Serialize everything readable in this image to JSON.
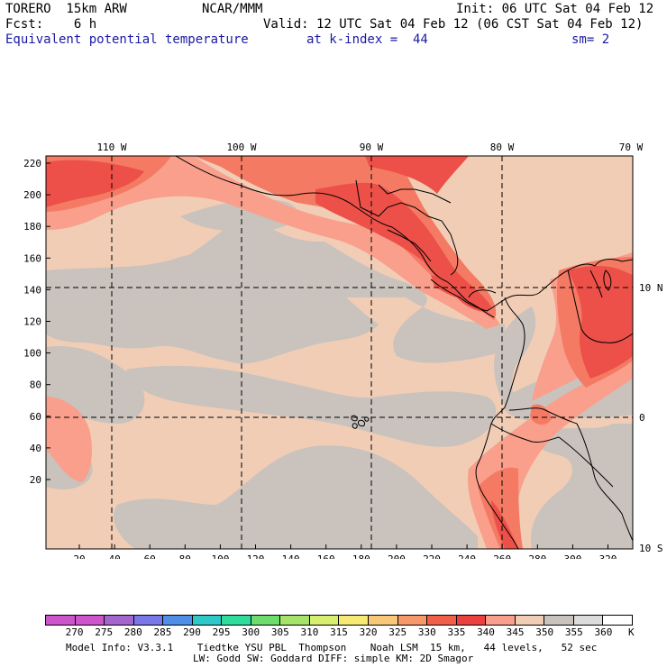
{
  "header": {
    "model": "TORERO  15km ARW",
    "center": "NCAR/MMM",
    "init": "Init: 06 UTC Sat 04 Feb 12",
    "fcst": "Fcst:    6 h",
    "valid": "Valid: 12 UTC Sat 04 Feb 12 (06 CST Sat 04 Feb 12)",
    "field": "Equivalent potential temperature",
    "level": "at k-index =  44",
    "smoothing": "sm= 2"
  },
  "map": {
    "lon_labels": [
      "110 W",
      "100 W",
      "90 W",
      "80 W",
      "70 W"
    ],
    "lat_labels": [
      "10 N",
      "0",
      "10 S"
    ],
    "y_ticks": [
      "220",
      "200",
      "180",
      "160",
      "140",
      "120",
      "100",
      "80",
      "60",
      "40",
      "20"
    ],
    "x_ticks": [
      "20",
      "40",
      "60",
      "80",
      "100",
      "120",
      "140",
      "160",
      "180",
      "200",
      "220",
      "240",
      "260",
      "280",
      "300",
      "320"
    ],
    "colors": {
      "grey": "#c9c2bd",
      "tan": "#f1cdb6",
      "salmon": "#f99f8c",
      "orange": "#f47a63",
      "red": "#ec5048",
      "deep_red": "#e53a39"
    }
  },
  "colorbar": {
    "labels": [
      "270",
      "275",
      "280",
      "285",
      "290",
      "295",
      "300",
      "305",
      "310",
      "315",
      "320",
      "325",
      "330",
      "335",
      "340",
      "345",
      "350",
      "355",
      "360"
    ],
    "unit": "K",
    "colors": [
      "#cc55cc",
      "#a366cc",
      "#7a77e8",
      "#4f8fe8",
      "#2fc8c8",
      "#2edc9c",
      "#6ddc6d",
      "#a6e36a",
      "#d8ee6e",
      "#f6ea74",
      "#f9c77a",
      "#f7986a",
      "#f06048",
      "#ec4040",
      "#f99f8c",
      "#f1cdb6",
      "#c9c2bd",
      "#dcdcdc",
      "#ffffff"
    ]
  },
  "footer": {
    "line1": "Model Info: V3.3.1    Tiedtke YSU PBL  Thompson    Noah LSM  15 km,   44 levels,   52 sec",
    "line2": "LW: Godd SW: Goddard DIFF: simple KM: 2D Smagor"
  }
}
